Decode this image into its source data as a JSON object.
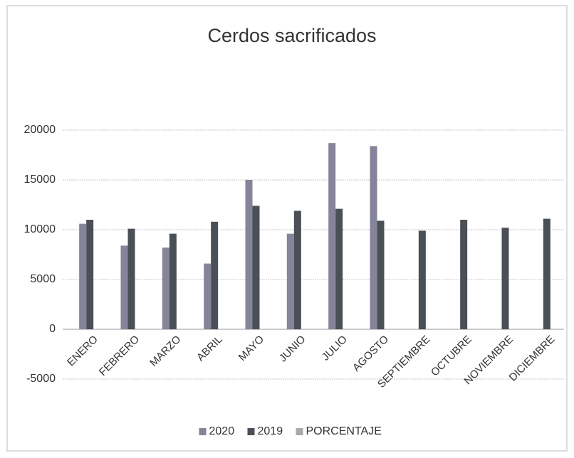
{
  "chart_data": {
    "type": "bar",
    "title": "Cerdos sacrificados",
    "categories": [
      "ENERO",
      "FEBRERO",
      "MARZO",
      "ABRIL",
      "MAYO",
      "JUNIO",
      "JULIO",
      "AGOSTO",
      "SEPTIEMBRE",
      "OCTUBRE",
      "NOVIEMBRE",
      "DICIEMBRE"
    ],
    "series": [
      {
        "name": "2020",
        "color": "#85849a",
        "values": [
          10600,
          8400,
          8200,
          6600,
          15000,
          9600,
          18700,
          18400,
          null,
          null,
          null,
          null
        ]
      },
      {
        "name": "2019",
        "color": "#4b5057",
        "values": [
          11000,
          10100,
          9600,
          10800,
          12400,
          11900,
          12100,
          10900,
          9900,
          11000,
          10200,
          11100
        ]
      },
      {
        "name": "PORCENTAJE",
        "color": "#a9a9a9",
        "values": [
          null,
          null,
          null,
          null,
          null,
          null,
          null,
          null,
          null,
          null,
          null,
          null
        ]
      }
    ],
    "ylim": [
      -5000,
      20000
    ],
    "yticks": [
      -5000,
      0,
      5000,
      10000,
      15000,
      20000
    ],
    "grid": true,
    "legend": "bottom"
  }
}
